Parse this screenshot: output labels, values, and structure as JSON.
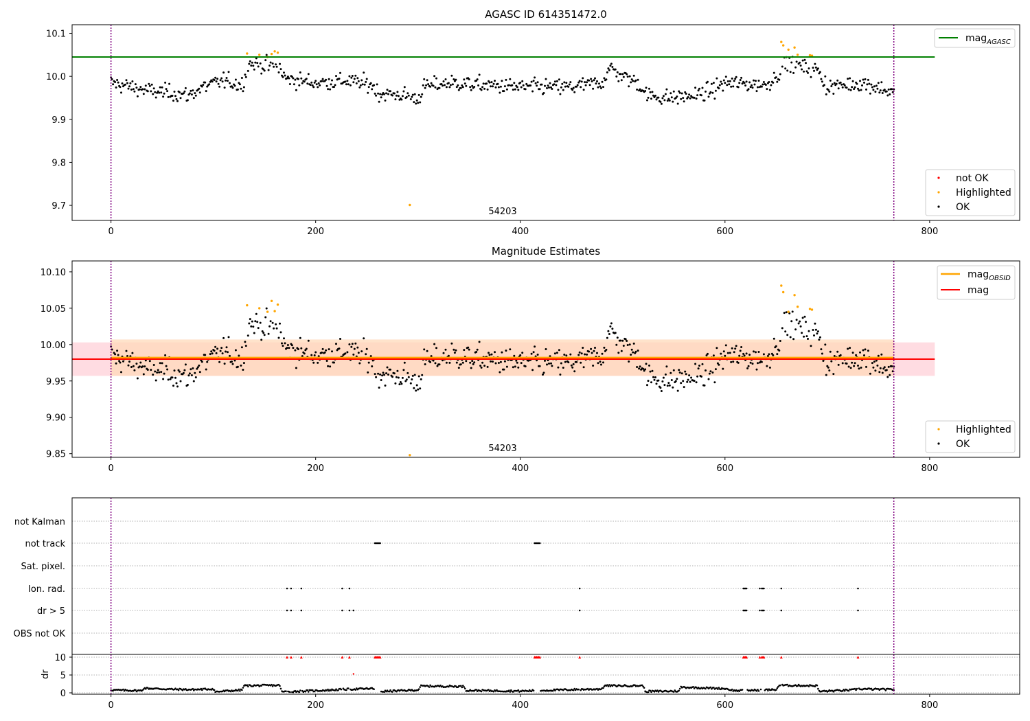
{
  "colors": {
    "ok": "#000000",
    "highlighted": "#ffa500",
    "not_ok": "#ff0000",
    "agasc_line": "#008000",
    "obsid_line": "#ffa500",
    "mag_line": "#ff0000",
    "obs_boundary": "#800080",
    "mag_band": "#ffc0cb",
    "obsid_band": "#ffdab9"
  },
  "chart_data": [
    {
      "type": "scatter",
      "title": "AGASC ID 614351472.0",
      "xlabel": "",
      "ylabel": "",
      "xlim": [
        -38,
        888
      ],
      "ylim": [
        9.665,
        10.12
      ],
      "xticks": [
        "0",
        "200",
        "400",
        "600",
        "800"
      ],
      "yticks": [
        "9.7",
        "9.8",
        "9.9",
        "10.0",
        "10.1"
      ],
      "obsid_label": "54203",
      "obs_boundaries": [
        0,
        765
      ],
      "reference_lines": [
        {
          "name": "mag_AGASC",
          "y": 10.045,
          "x_range": [
            -38,
            805
          ]
        }
      ],
      "legend_lines": [
        {
          "base": "mag",
          "sub": "AGASC"
        }
      ],
      "legend_markers": [
        "not OK",
        "Highlighted",
        "OK"
      ],
      "highlighted_points": [
        [
          133,
          10.053
        ],
        [
          145,
          10.05
        ],
        [
          153,
          10.045
        ],
        [
          157,
          10.052
        ],
        [
          160,
          10.058
        ],
        [
          163,
          10.055
        ],
        [
          655,
          10.08
        ],
        [
          657,
          10.072
        ],
        [
          662,
          10.062
        ],
        [
          668,
          10.067
        ],
        [
          671,
          10.05
        ],
        [
          683,
          10.049
        ],
        [
          685,
          10.048
        ],
        [
          292,
          9.701
        ]
      ],
      "ok_series_summary": "~765 black points, baseline level by segment",
      "ok_baseline": [
        [
          0,
          9.985
        ],
        [
          20,
          9.975
        ],
        [
          40,
          9.965
        ],
        [
          60,
          9.962
        ],
        [
          75,
          9.955
        ],
        [
          90,
          9.975
        ],
        [
          110,
          9.99
        ],
        [
          128,
          9.98
        ],
        [
          135,
          10.03
        ],
        [
          150,
          10.025
        ],
        [
          165,
          10.02
        ],
        [
          170,
          9.995
        ],
        [
          200,
          9.985
        ],
        [
          230,
          9.99
        ],
        [
          255,
          9.98
        ],
        [
          262,
          9.96
        ],
        [
          290,
          9.955
        ],
        [
          300,
          9.945
        ],
        [
          305,
          9.975
        ],
        [
          330,
          9.985
        ],
        [
          360,
          9.98
        ],
        [
          400,
          9.975
        ],
        [
          450,
          9.975
        ],
        [
          480,
          9.985
        ],
        [
          487,
          10.02
        ],
        [
          500,
          10.0
        ],
        [
          515,
          9.985
        ],
        [
          525,
          9.955
        ],
        [
          545,
          9.95
        ],
        [
          570,
          9.955
        ],
        [
          585,
          9.965
        ],
        [
          600,
          9.985
        ],
        [
          640,
          9.98
        ],
        [
          650,
          10.0
        ],
        [
          660,
          10.03
        ],
        [
          690,
          10.015
        ],
        [
          700,
          9.975
        ],
        [
          735,
          9.985
        ],
        [
          755,
          9.97
        ],
        [
          765,
          9.96
        ]
      ]
    },
    {
      "type": "scatter",
      "title": "Magnitude Estimates",
      "xlabel": "",
      "ylabel": "",
      "xlim": [
        -38,
        888
      ],
      "ylim": [
        9.845,
        10.115
      ],
      "xticks": [
        "0",
        "200",
        "400",
        "600",
        "800"
      ],
      "yticks": [
        "9.85",
        "9.90",
        "9.95",
        "10.00",
        "10.05",
        "10.10"
      ],
      "obsid_label": "54203",
      "obs_boundaries": [
        0,
        765
      ],
      "reference_lines": [
        {
          "name": "mag_OBSID",
          "y": 9.982,
          "x_range": [
            0,
            765
          ]
        },
        {
          "name": "mag",
          "y": 9.98,
          "x_range": [
            -38,
            805
          ]
        }
      ],
      "bands": [
        {
          "name": "mag_band",
          "y_range": [
            9.957,
            10.003
          ],
          "x_range": [
            -38,
            805
          ]
        },
        {
          "name": "obsid_band",
          "y_range": [
            9.957,
            10.007
          ],
          "x_range": [
            0,
            765
          ]
        }
      ],
      "legend_lines": [
        {
          "base": "mag",
          "sub": "OBSID"
        },
        {
          "base": "mag",
          "sub": ""
        }
      ],
      "legend_markers": [
        "Highlighted",
        "OK"
      ],
      "highlighted_points": [
        [
          133,
          10.054
        ],
        [
          145,
          10.05
        ],
        [
          153,
          10.045
        ],
        [
          157,
          10.06
        ],
        [
          160,
          10.046
        ],
        [
          163,
          10.055
        ],
        [
          655,
          10.081
        ],
        [
          657,
          10.072
        ],
        [
          662,
          10.045
        ],
        [
          668,
          10.068
        ],
        [
          671,
          10.052
        ],
        [
          683,
          10.049
        ],
        [
          685,
          10.048
        ],
        [
          292,
          9.848
        ]
      ],
      "ok_series_summary": "same photometry as panel 1"
    },
    {
      "type": "scatter",
      "title": "",
      "xlabel": "",
      "ylabel": "dr",
      "xlim": [
        -38,
        888
      ],
      "flag_rows": [
        "not Kalman",
        "not track",
        "Sat. pixel.",
        "Ion. rad.",
        "dr > 5",
        "OBS not OK"
      ],
      "dr_ylim": [
        0,
        10
      ],
      "dr_yticks": [
        "0",
        "5",
        "10"
      ],
      "xticks": [
        "0",
        "200",
        "400",
        "600",
        "800"
      ],
      "obs_boundaries": [
        0,
        765
      ],
      "flags": {
        "not track": [
          258,
          259,
          260,
          261,
          262,
          263,
          414,
          415,
          416,
          417,
          418,
          419
        ],
        "Ion. rad.": [
          172,
          176,
          186,
          226,
          233,
          458,
          618,
          619,
          620,
          621,
          634,
          636,
          637,
          638,
          655,
          730
        ],
        "dr > 5": [
          172,
          176,
          186,
          226,
          233,
          237,
          458,
          618,
          619,
          620,
          621,
          634,
          636,
          637,
          638,
          655,
          730
        ]
      },
      "dr_clipped_points": [
        172,
        176,
        186,
        226,
        233,
        258,
        259,
        260,
        261,
        262,
        263,
        414,
        415,
        416,
        417,
        418,
        419,
        458,
        618,
        619,
        620,
        621,
        634,
        636,
        637,
        638,
        655,
        730
      ],
      "dr_outlier": [
        237,
        5.3
      ],
      "dr_baseline": [
        [
          0,
          0.8
        ],
        [
          30,
          0.6
        ],
        [
          32,
          1.3
        ],
        [
          60,
          1.0
        ],
        [
          80,
          0.9
        ],
        [
          100,
          1.1
        ],
        [
          102,
          0.3
        ],
        [
          128,
          0.8
        ],
        [
          130,
          2.0
        ],
        [
          165,
          2.1
        ],
        [
          167,
          0.3
        ],
        [
          200,
          0.6
        ],
        [
          230,
          1.0
        ],
        [
          255,
          1.2
        ],
        [
          265,
          0.4
        ],
        [
          300,
          0.8
        ],
        [
          303,
          1.9
        ],
        [
          345,
          1.8
        ],
        [
          347,
          0.7
        ],
        [
          400,
          0.5
        ],
        [
          450,
          0.9
        ],
        [
          480,
          1.1
        ],
        [
          482,
          2.0
        ],
        [
          520,
          2.0
        ],
        [
          522,
          0.4
        ],
        [
          555,
          0.5
        ],
        [
          557,
          1.6
        ],
        [
          600,
          1.2
        ],
        [
          610,
          0.6
        ],
        [
          650,
          0.9
        ],
        [
          653,
          2.1
        ],
        [
          690,
          2.0
        ],
        [
          692,
          0.4
        ],
        [
          725,
          0.8
        ],
        [
          730,
          1.1
        ],
        [
          765,
          0.9
        ]
      ]
    }
  ]
}
